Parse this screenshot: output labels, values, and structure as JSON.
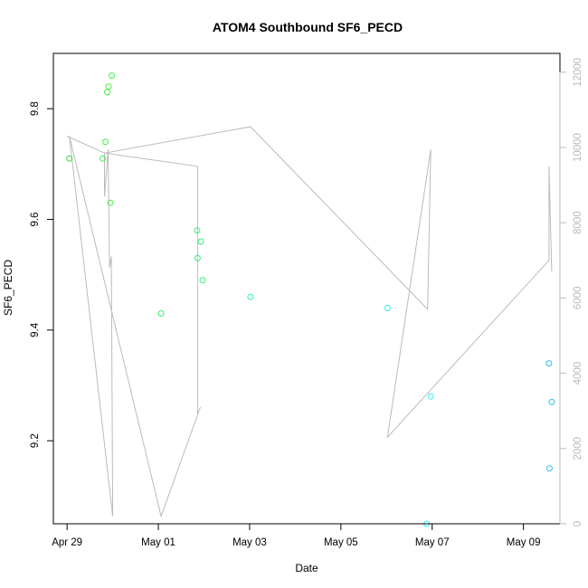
{
  "chart_data": {
    "type": "scatter",
    "title": "ATOM4 Southbound SF6_PECD",
    "xlabel": "Date",
    "ylabel": "SF6_PECD",
    "x_ticks": [
      "Apr 29",
      "May 01",
      "May 03",
      "May 05",
      "May 07",
      "May 09"
    ],
    "y_left_ticks": [
      "9.2",
      "9.4",
      "9.6",
      "9.8"
    ],
    "y_right_ticks": [
      "0",
      "2000",
      "4000",
      "6000",
      "8000",
      "10000",
      "12000"
    ],
    "y_left_range": [
      9.05,
      9.9
    ],
    "y_right_range": [
      0,
      12500
    ],
    "x_range_days": [
      -0.3,
      10.8
    ],
    "x_tick_days": [
      0,
      2,
      4,
      6,
      8,
      10
    ],
    "points": [
      {
        "day": 0.05,
        "y": 9.71,
        "color": "#33dd33"
      },
      {
        "day": 0.78,
        "y": 9.71,
        "color": "#44ee44"
      },
      {
        "day": 0.84,
        "y": 9.74,
        "color": "#44ee44"
      },
      {
        "day": 0.88,
        "y": 9.83,
        "color": "#44ee44"
      },
      {
        "day": 0.91,
        "y": 9.84,
        "color": "#44ee44"
      },
      {
        "day": 0.95,
        "y": 9.63,
        "color": "#44ee44"
      },
      {
        "day": 0.98,
        "y": 9.86,
        "color": "#44ee44"
      },
      {
        "day": 2.06,
        "y": 9.43,
        "color": "#33ee77"
      },
      {
        "day": 2.85,
        "y": 9.58,
        "color": "#33ee77"
      },
      {
        "day": 2.86,
        "y": 9.53,
        "color": "#33ee77"
      },
      {
        "day": 2.93,
        "y": 9.56,
        "color": "#33ee77"
      },
      {
        "day": 2.97,
        "y": 9.49,
        "color": "#33ee77"
      },
      {
        "day": 4.02,
        "y": 9.46,
        "color": "#33eebb"
      },
      {
        "day": 7.02,
        "y": 9.44,
        "color": "#33eeee"
      },
      {
        "day": 7.88,
        "y": 9.05,
        "color": "#33eeee"
      },
      {
        "day": 7.97,
        "y": 9.28,
        "color": "#33eeee"
      },
      {
        "day": 10.56,
        "y": 9.34,
        "color": "#33bbee"
      },
      {
        "day": 10.57,
        "y": 9.15,
        "color": "#33bbee"
      },
      {
        "day": 10.62,
        "y": 9.27,
        "color": "#33bbee"
      }
    ],
    "secondary_line": {
      "color": "#bbbbbb",
      "points": [
        [
          0.0,
          10300
        ],
        [
          0.82,
          9850
        ],
        [
          0.82,
          8700
        ],
        [
          0.9,
          9950
        ],
        [
          0.93,
          6800
        ],
        [
          0.97,
          7100
        ],
        [
          1.0,
          200
        ],
        [
          0.05,
          10300
        ],
        [
          2.06,
          200
        ],
        [
          2.92,
          3100
        ],
        [
          2.86,
          2900
        ],
        [
          2.86,
          9500
        ],
        [
          0.82,
          9850
        ],
        [
          4.02,
          10550
        ],
        [
          7.9,
          5700
        ],
        [
          7.97,
          9950
        ],
        [
          7.02,
          2300
        ],
        [
          10.56,
          7000
        ],
        [
          10.56,
          9500
        ],
        [
          10.62,
          6700
        ]
      ]
    },
    "grid": false
  }
}
